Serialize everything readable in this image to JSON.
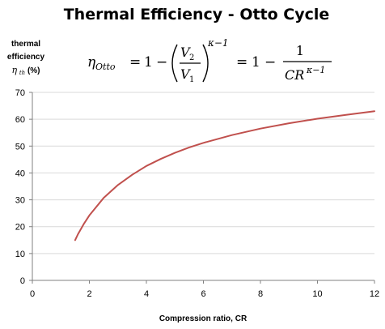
{
  "chart_data": {
    "type": "line",
    "title": "Thermal Efficiency - Otto Cycle",
    "ylabel_line1": "thermal",
    "ylabel_line2": "efficiency",
    "ylabel_symbol": "η",
    "ylabel_subscript": "th",
    "ylabel_unit": " (%)",
    "xlabel": "Compression ratio, CR",
    "formula": {
      "eta": "η",
      "eta_sub": "Otto",
      "equals": "=",
      "one": "1",
      "minus": "−",
      "v_num": "V",
      "v_num_sub": "2",
      "v_den": "V",
      "v_den_sub": "1",
      "exponent": "κ−1",
      "cr": "CR",
      "cr_exponent": "κ−1"
    },
    "xlim": [
      0,
      12
    ],
    "ylim": [
      0,
      70
    ],
    "xticks": [
      "0",
      "2",
      "4",
      "6",
      "8",
      "10",
      "12"
    ],
    "yticks": [
      "0",
      "10",
      "20",
      "30",
      "40",
      "50",
      "60",
      "70"
    ],
    "grid": "horizontal",
    "series": [
      {
        "color": "#c0504d",
        "x": [
          1.5,
          1.6,
          1.8,
          2,
          2.5,
          3,
          3.5,
          4,
          4.5,
          5,
          5.5,
          6,
          7,
          8,
          9,
          10,
          11,
          12
        ],
        "y": [
          15,
          17.2,
          20.9,
          24.2,
          30.7,
          35.5,
          39.3,
          42.6,
          45.2,
          47.5,
          49.5,
          51.2,
          54.1,
          56.5,
          58.5,
          60.2,
          61.6,
          63
        ]
      }
    ]
  }
}
